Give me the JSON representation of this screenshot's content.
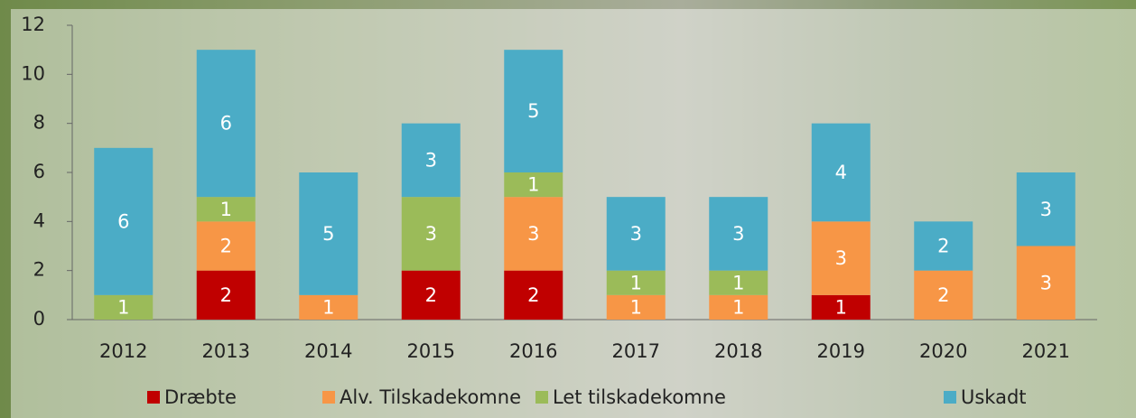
{
  "chart_data": {
    "type": "stacked_bar",
    "categories": [
      "2012",
      "2013",
      "2014",
      "2015",
      "2016",
      "2017",
      "2018",
      "2019",
      "2020",
      "2021"
    ],
    "series": [
      {
        "name": "Dræbte",
        "color": "#c00000",
        "values": [
          0,
          2,
          0,
          2,
          2,
          0,
          0,
          1,
          0,
          0
        ]
      },
      {
        "name": "Alv. Tilskadekomne",
        "color": "#f79646",
        "values": [
          0,
          2,
          1,
          0,
          3,
          1,
          1,
          3,
          2,
          3
        ]
      },
      {
        "name": "Let tilskadekomne",
        "color": "#9bbb59",
        "values": [
          1,
          1,
          0,
          3,
          1,
          1,
          1,
          0,
          0,
          0
        ]
      },
      {
        "name": "Uskadt",
        "color": "#4bacc6",
        "values": [
          6,
          6,
          5,
          3,
          5,
          3,
          3,
          4,
          2,
          3
        ]
      }
    ],
    "ylim": [
      0,
      12
    ],
    "yticks": [
      0,
      2,
      4,
      6,
      8,
      10,
      12
    ]
  }
}
